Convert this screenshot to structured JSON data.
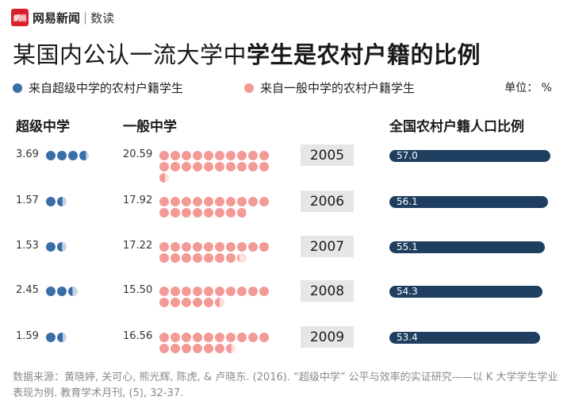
{
  "brand": {
    "logo_text": "網易",
    "name": "网易新闻",
    "separator": "|",
    "sub": "数读"
  },
  "title": {
    "light": "某国内公认一流大学中",
    "bold": "学生是农村户籍的比例"
  },
  "legend": {
    "super": {
      "label": "来自超级中学的农村户籍学生",
      "color": "#3a6ea8"
    },
    "general": {
      "label": "来自一般中学的农村户籍学生",
      "color": "#f39a96"
    }
  },
  "unit": "单位： %",
  "columns": {
    "super": "超级中学",
    "general": "一般中学",
    "rural": "全国农村户籍人口比例"
  },
  "source": "数据来源：黄晓婷, 关可心, 熊光辉, 陈虎, & 卢晓东. (2016). “超级中学” 公平与效率的实证研究——以 K 大学学生学业表现为例. 教育学术月刊, (5), 32-37.",
  "chart_data": {
    "type": "table",
    "categories": [
      "2005",
      "2006",
      "2007",
      "2008",
      "2009"
    ],
    "series": [
      {
        "name": "来自超级中学的农村户籍学生",
        "values": [
          3.69,
          1.57,
          1.53,
          2.45,
          1.59
        ]
      },
      {
        "name": "来自一般中学的农村户籍学生",
        "values": [
          20.59,
          17.92,
          17.22,
          15.5,
          16.56
        ]
      },
      {
        "name": "全国农村户籍人口比例",
        "values": [
          57.0,
          56.1,
          55.1,
          54.3,
          53.4
        ]
      }
    ],
    "value_labels": {
      "super": [
        "3.69",
        "1.57",
        "1.53",
        "2.45",
        "1.59"
      ],
      "general": [
        "20.59",
        "17.92",
        "17.22",
        "15.50",
        "16.56"
      ],
      "rural": [
        "57.0",
        "56.1",
        "55.1",
        "54.3",
        "53.4"
      ]
    },
    "colors": {
      "super": "#3a6ea8",
      "general": "#f39a96",
      "rural": "#1e3f5f",
      "year_box": "#e6e6e6"
    }
  }
}
